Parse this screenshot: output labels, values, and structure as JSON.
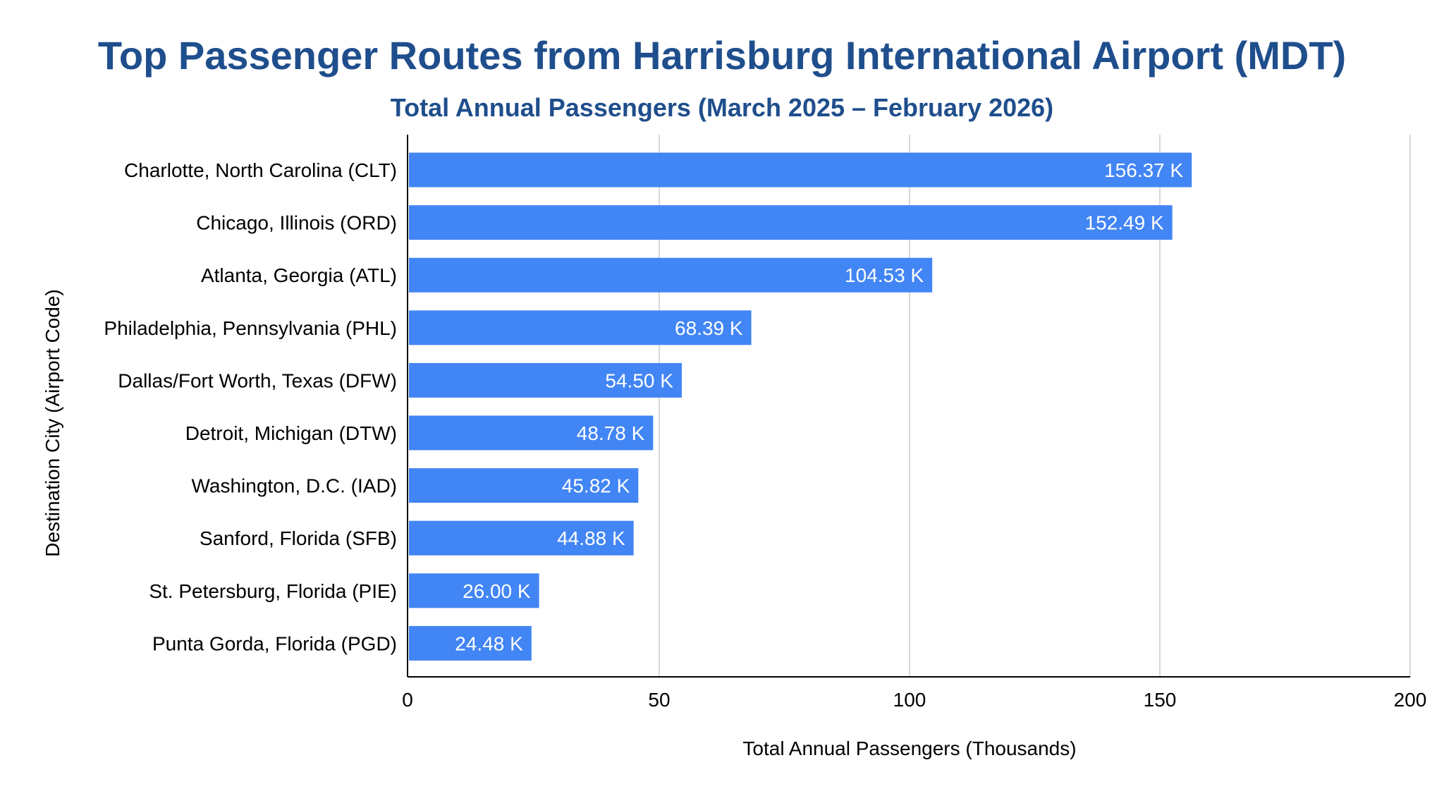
{
  "chart_data": {
    "type": "bar",
    "orientation": "horizontal",
    "title": "Top Passenger Routes from Harrisburg International Airport (MDT)",
    "subtitle": "Total Annual Passengers (March 2025 – February 2026)",
    "xlabel": "Total Annual Passengers (Thousands)",
    "ylabel": "Destination City (Airport Code)",
    "categories": [
      "Charlotte, North Carolina (CLT)",
      "Chicago, Illinois (ORD)",
      "Atlanta, Georgia (ATL)",
      "Philadelphia, Pennsylvania (PHL)",
      "Dallas/Fort Worth, Texas (DFW)",
      "Detroit, Michigan (DTW)",
      "Washington, D.C. (IAD)",
      "Sanford, Florida (SFB)",
      "St. Petersburg, Florida (PIE)",
      "Punta Gorda, Florida (PGD)"
    ],
    "values": [
      156.37,
      152.49,
      104.53,
      68.39,
      54.5,
      48.78,
      45.82,
      44.88,
      26.0,
      24.48
    ],
    "data_labels": [
      "156.37 K",
      "152.49 K",
      "104.53 K",
      "68.39 K",
      "54.50 K",
      "48.78 K",
      "45.82 K",
      "44.88 K",
      "26.00 K",
      "24.48 K"
    ],
    "xlim": [
      0,
      200
    ],
    "xticks": [
      0,
      50,
      100,
      150,
      200
    ],
    "grid": true,
    "bar_color": "#4285f4",
    "title_color": "#1f4e8c",
    "grid_color": "#cccccc"
  }
}
